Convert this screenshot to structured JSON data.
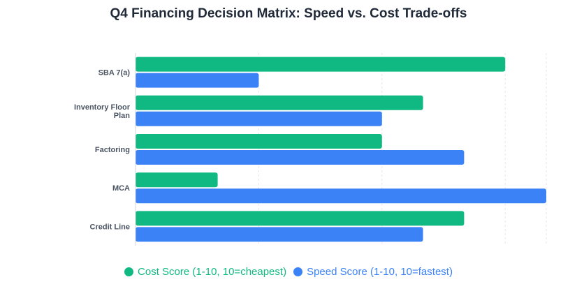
{
  "chart_data": {
    "type": "bar",
    "orientation": "horizontal",
    "title": "Q4 Financing Decision Matrix: Speed vs. Cost Trade-offs",
    "categories": [
      "SBA 7(a)",
      "Inventory Floor Plan",
      "Factoring",
      "MCA",
      "Credit Line"
    ],
    "category_lines": [
      [
        "SBA 7(a)"
      ],
      [
        "Inventory Floor",
        "Plan"
      ],
      [
        "Factoring"
      ],
      [
        "MCA"
      ],
      [
        "Credit Line"
      ]
    ],
    "series": [
      {
        "name": "Cost Score (1-10, 10=cheapest)",
        "values": [
          9,
          7,
          6,
          2,
          8
        ],
        "color": "#10b981"
      },
      {
        "name": "Speed Score (1-10, 10=fastest)",
        "values": [
          3,
          6,
          8,
          10,
          7
        ],
        "color": "#3b82f6"
      }
    ],
    "xlim": [
      0,
      10
    ],
    "grid": true,
    "legend_position": "bottom"
  }
}
